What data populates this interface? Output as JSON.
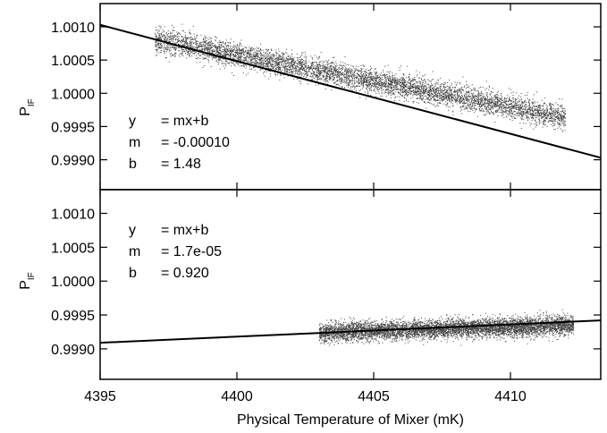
{
  "chart_data": [
    {
      "type": "scatter",
      "panel": "top",
      "title": "",
      "ylabel": "P",
      "ylabel_sub": "IF",
      "xlabel": "",
      "xlim": [
        4395,
        4413.3
      ],
      "ylim": [
        0.99855,
        1.00135
      ],
      "yticks": [
        "1.0010",
        "1.0005",
        "1.0000",
        "0.9995",
        "0.9990"
      ],
      "ytick_values": [
        1.001,
        1.0005,
        1.0,
        0.9995,
        0.999
      ],
      "xtick_values": [
        4395,
        4400,
        4405,
        4410
      ],
      "fit_line": {
        "m": -0.0001,
        "b": 1.48,
        "y_at_xmin": 1.00103,
        "y_at_xmax": 0.99903
      },
      "point_cloud": {
        "x_range": [
          4397,
          4412
        ],
        "center_start": [
          4397.5,
          1.00078
        ],
        "center_end": [
          4411.5,
          0.99968
        ],
        "spread_y": 0.00018,
        "approx_points": 6000
      },
      "annotations": [
        {
          "lhs": "y",
          "rhs": "= mx+b"
        },
        {
          "lhs": "m",
          "rhs": "= -0.00010"
        },
        {
          "lhs": "b",
          "rhs": "= 1.48"
        }
      ]
    },
    {
      "type": "scatter",
      "panel": "bottom",
      "title": "",
      "ylabel": "P",
      "ylabel_sub": "IF",
      "xlabel": "Physical Temperature of Mixer (mK)",
      "xlim": [
        4395,
        4413.3
      ],
      "ylim": [
        0.99855,
        1.00135
      ],
      "yticks": [
        "1.0010",
        "1.0005",
        "1.0000",
        "0.9995",
        "0.9990"
      ],
      "ytick_values": [
        1.001,
        1.0005,
        1.0,
        0.9995,
        0.999
      ],
      "xticks": [
        "4395",
        "4400",
        "4405",
        "4410"
      ],
      "xtick_values": [
        4395,
        4400,
        4405,
        4410
      ],
      "fit_line": {
        "m": 1.7e-05,
        "b": 0.92,
        "y_at_xmin": 0.99909,
        "y_at_xmax": 0.99942
      },
      "point_cloud": {
        "x_range": [
          4403,
          4412.3
        ],
        "center_start": [
          4403.2,
          0.99925
        ],
        "center_end": [
          4412,
          0.99935
        ],
        "spread_y": 0.00014,
        "approx_points": 6000
      },
      "annotations": [
        {
          "lhs": "y",
          "rhs": "= mx+b"
        },
        {
          "lhs": "m",
          "rhs": "= 1.7e-05"
        },
        {
          "lhs": "b",
          "rhs": "= 0.920"
        }
      ]
    }
  ]
}
